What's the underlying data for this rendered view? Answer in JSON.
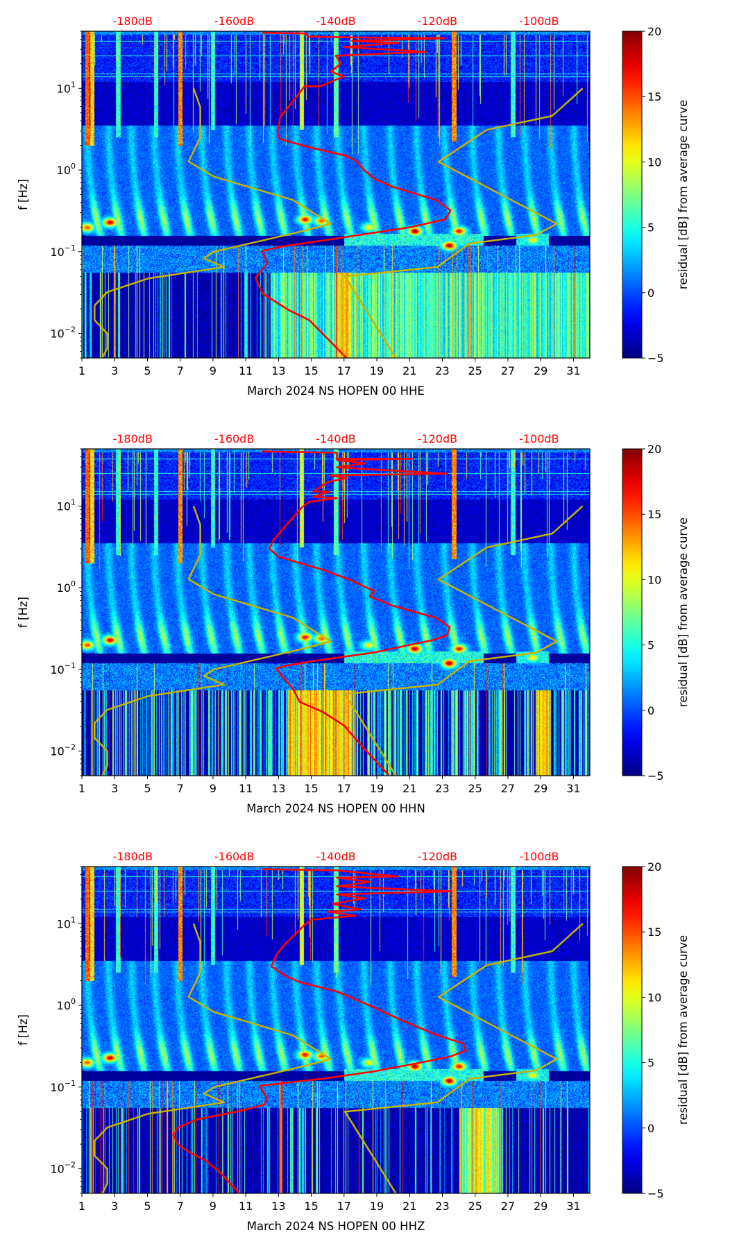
{
  "figure": {
    "y_label": "f [Hz]",
    "colorbar_label": "residual [dB] from average curve"
  },
  "reference_curves": {
    "color": "#c8b400",
    "low_noise_model": [
      [
        -168,
        10
      ],
      [
        -166.7,
        5.9
      ],
      [
        -166.7,
        2.5
      ],
      [
        -169,
        1.27
      ],
      [
        -164,
        0.83
      ],
      [
        -148.5,
        0.43
      ],
      [
        -141,
        0.22
      ],
      [
        -148,
        0.17
      ],
      [
        -164,
        0.1
      ],
      [
        -166,
        0.083
      ],
      [
        -162,
        0.065
      ],
      [
        -177,
        0.047
      ],
      [
        -185,
        0.032
      ],
      [
        -187.5,
        0.022
      ],
      [
        -187.5,
        0.0145
      ],
      [
        -185,
        0.01
      ],
      [
        -185,
        0.0066
      ],
      [
        -186,
        0.005
      ]
    ],
    "high_noise_model": [
      [
        -91.4,
        10
      ],
      [
        -97.4,
        4.6
      ],
      [
        -110.3,
        3.1
      ],
      [
        -119.8,
        1.26
      ],
      [
        -96.5,
        0.22
      ],
      [
        -100.6,
        0.16
      ],
      [
        -113.7,
        0.126
      ],
      [
        -120,
        0.065
      ],
      [
        -138.2,
        0.05
      ],
      [
        -128.2,
        0.005
      ]
    ]
  },
  "chart_data": [
    {
      "type": "heatmap",
      "xlabel": "March 2024 NS HOPEN 00 HHE",
      "xlim": [
        1,
        32
      ],
      "ylim": [
        0.005,
        50
      ],
      "yscale": "log",
      "x_ticks": [
        1,
        3,
        5,
        7,
        9,
        11,
        13,
        15,
        17,
        19,
        21,
        23,
        25,
        27,
        29,
        31
      ],
      "x_tick_labels": [
        "1",
        "3",
        "5",
        "7",
        "9",
        "11",
        "13",
        "15",
        "17",
        "19",
        "21",
        "23",
        "25",
        "27",
        "29",
        "31"
      ],
      "y_ticks": [
        {
          "value": 0.01,
          "base": "10",
          "exp": "−2"
        },
        {
          "value": 0.1,
          "base": "10",
          "exp": "−1"
        },
        {
          "value": 1,
          "base": "10",
          "exp": "0"
        },
        {
          "value": 10,
          "base": "10",
          "exp": "1"
        }
      ],
      "top_axis": {
        "labels": [
          "-180dB",
          "-160dB",
          "-140dB",
          "-120dB",
          "-100dB"
        ],
        "dB": [
          -180,
          -160,
          -140,
          -120,
          -100
        ],
        "day": [
          4.1,
          10.3,
          16.5,
          22.7,
          28.9
        ],
        "color": "#ff0000"
      },
      "colorbar": {
        "min": -5,
        "max": 20,
        "ticks": [
          -5,
          0,
          5,
          10,
          15,
          20
        ],
        "tick_labels": [
          "−5",
          "0",
          "5",
          "10",
          "15",
          "20"
        ],
        "colormap": "jet"
      },
      "average_curve": {
        "color": "#ff0000",
        "points": [
          [
            -154.5,
            48
          ],
          [
            -145.8,
            47
          ],
          [
            -145.5,
            43
          ],
          [
            -136.8,
            42
          ],
          [
            -118.7,
            41
          ],
          [
            -136.8,
            38
          ],
          [
            -127.7,
            36
          ],
          [
            -138.4,
            32
          ],
          [
            -122.3,
            28
          ],
          [
            -140,
            25
          ],
          [
            -139,
            20
          ],
          [
            -141,
            16
          ],
          [
            -138.4,
            14
          ],
          [
            -141,
            12
          ],
          [
            -143.2,
            10.5
          ],
          [
            -146.1,
            10.7
          ],
          [
            -148.1,
            7.4
          ],
          [
            -151,
            4.4
          ],
          [
            -151.5,
            2.8
          ],
          [
            -151,
            2.4
          ],
          [
            -145.3,
            1.9
          ],
          [
            -138.1,
            1.5
          ],
          [
            -136.1,
            1.3
          ],
          [
            -134.8,
            1.05
          ],
          [
            -132.4,
            0.78
          ],
          [
            -128.7,
            0.62
          ],
          [
            -120.3,
            0.43
          ],
          [
            -117.4,
            0.32
          ],
          [
            -118.4,
            0.25
          ],
          [
            -125.2,
            0.2
          ],
          [
            -141.6,
            0.14
          ],
          [
            -151,
            0.115
          ],
          [
            -154.5,
            0.102
          ],
          [
            -153.5,
            0.071
          ],
          [
            -155.8,
            0.048
          ],
          [
            -154.5,
            0.031
          ],
          [
            -149.4,
            0.0195
          ],
          [
            -145.2,
            0.0145
          ],
          [
            -137.9,
            0.005
          ]
        ]
      }
    },
    {
      "type": "heatmap",
      "xlabel": "March 2024 NS HOPEN 00 HHN",
      "xlim": [
        1,
        32
      ],
      "ylim": [
        0.005,
        50
      ],
      "yscale": "log",
      "x_ticks": [
        1,
        3,
        5,
        7,
        9,
        11,
        13,
        15,
        17,
        19,
        21,
        23,
        25,
        27,
        29,
        31
      ],
      "x_tick_labels": [
        "1",
        "3",
        "5",
        "7",
        "9",
        "11",
        "13",
        "15",
        "17",
        "19",
        "21",
        "23",
        "25",
        "27",
        "29",
        "31"
      ],
      "y_ticks": [
        {
          "value": 0.01,
          "base": "10",
          "exp": "−2"
        },
        {
          "value": 0.1,
          "base": "10",
          "exp": "−1"
        },
        {
          "value": 1,
          "base": "10",
          "exp": "0"
        },
        {
          "value": 10,
          "base": "10",
          "exp": "1"
        }
      ],
      "top_axis": {
        "labels": [
          "-180dB",
          "-160dB",
          "-140dB",
          "-120dB",
          "-100dB"
        ],
        "dB": [
          -180,
          -160,
          -140,
          -120,
          -100
        ],
        "day": [
          4.1,
          10.3,
          16.5,
          22.7,
          28.9
        ],
        "color": "#ff0000"
      },
      "colorbar": {
        "min": -5,
        "max": 20,
        "ticks": [
          -5,
          0,
          5,
          10,
          15,
          20
        ],
        "tick_labels": [
          "−5",
          "0",
          "5",
          "10",
          "15",
          "20"
        ],
        "colormap": "jet"
      },
      "average_curve": {
        "color": "#ff0000",
        "points": [
          [
            -154.5,
            46.6
          ],
          [
            -139.8,
            44.8
          ],
          [
            -139.8,
            37.8
          ],
          [
            -125,
            37.8
          ],
          [
            -139.8,
            36.6
          ],
          [
            -134.2,
            33.2
          ],
          [
            -139.8,
            29.7
          ],
          [
            -118.1,
            24.9
          ],
          [
            -141.2,
            23.7
          ],
          [
            -137.9,
            22
          ],
          [
            -141.6,
            19.6
          ],
          [
            -144.4,
            15.1
          ],
          [
            -141.2,
            14.9
          ],
          [
            -144.4,
            13
          ],
          [
            -139.8,
            12.5
          ],
          [
            -145.3,
            11.2
          ],
          [
            -146.7,
            9.6
          ],
          [
            -149.9,
            5.7
          ],
          [
            -152.2,
            3.9
          ],
          [
            -153.1,
            3.0
          ],
          [
            -151.3,
            2.4
          ],
          [
            -147.1,
            2.0
          ],
          [
            -142.5,
            1.65
          ],
          [
            -137.5,
            1.27
          ],
          [
            -135.2,
            1.09
          ],
          [
            -132.4,
            0.91
          ],
          [
            -133.3,
            0.78
          ],
          [
            -128.7,
            0.6
          ],
          [
            -120.4,
            0.43
          ],
          [
            -117.6,
            0.33
          ],
          [
            -118.1,
            0.26
          ],
          [
            -121.3,
            0.226
          ],
          [
            -132.4,
            0.161
          ],
          [
            -143.5,
            0.129
          ],
          [
            -149.9,
            0.111
          ],
          [
            -151.7,
            0.103
          ],
          [
            -150.8,
            0.085
          ],
          [
            -148.5,
            0.059
          ],
          [
            -147.1,
            0.04
          ],
          [
            -142.5,
            0.03
          ],
          [
            -138.4,
            0.0206
          ],
          [
            -136.1,
            0.0141
          ],
          [
            -133.3,
            0.009
          ],
          [
            -129.6,
            0.0051
          ]
        ]
      }
    },
    {
      "type": "heatmap",
      "xlabel": "March 2024 NS HOPEN 00 HHZ",
      "xlim": [
        1,
        32
      ],
      "ylim": [
        0.005,
        50
      ],
      "yscale": "log",
      "x_ticks": [
        1,
        3,
        5,
        7,
        9,
        11,
        13,
        15,
        17,
        19,
        21,
        23,
        25,
        27,
        29,
        31
      ],
      "x_tick_labels": [
        "1",
        "3",
        "5",
        "7",
        "9",
        "11",
        "13",
        "15",
        "17",
        "19",
        "21",
        "23",
        "25",
        "27",
        "29",
        "31"
      ],
      "y_ticks": [
        {
          "value": 0.01,
          "base": "10",
          "exp": "−2"
        },
        {
          "value": 0.1,
          "base": "10",
          "exp": "−1"
        },
        {
          "value": 1,
          "base": "10",
          "exp": "0"
        },
        {
          "value": 10,
          "base": "10",
          "exp": "1"
        }
      ],
      "top_axis": {
        "labels": [
          "-180dB",
          "-160dB",
          "-140dB",
          "-120dB",
          "-100dB"
        ],
        "dB": [
          -180,
          -160,
          -140,
          -120,
          -100
        ],
        "day": [
          4.1,
          10.3,
          16.5,
          22.7,
          28.9
        ],
        "color": "#ff0000"
      },
      "colorbar": {
        "min": -5,
        "max": 20,
        "ticks": [
          -5,
          0,
          5,
          10,
          15,
          20
        ],
        "tick_labels": [
          "−5",
          "0",
          "5",
          "10",
          "15",
          "20"
        ],
        "colormap": "jet"
      },
      "average_curve": {
        "color": "#ff0000",
        "points": [
          [
            -154.5,
            46.6
          ],
          [
            -139.8,
            44.8
          ],
          [
            -127.8,
            37.8
          ],
          [
            -139.8,
            36.6
          ],
          [
            -133.3,
            32.4
          ],
          [
            -139.8,
            28.6
          ],
          [
            -117.2,
            24.9
          ],
          [
            -139.8,
            22.8
          ],
          [
            -134.2,
            20.4
          ],
          [
            -140.7,
            17.5
          ],
          [
            -135.2,
            14.9
          ],
          [
            -141.6,
            14
          ],
          [
            -136.1,
            12.5
          ],
          [
            -144.8,
            11.2
          ],
          [
            -146.2,
            9.6
          ],
          [
            -149.9,
            5.7
          ],
          [
            -151.7,
            4.2
          ],
          [
            -152.7,
            3.0
          ],
          [
            -149.9,
            2.3
          ],
          [
            -147.1,
            1.92
          ],
          [
            -139.8,
            1.48
          ],
          [
            -136.1,
            1.18
          ],
          [
            -132.4,
            0.94
          ],
          [
            -126.9,
            0.65
          ],
          [
            -120.4,
            0.44
          ],
          [
            -114.9,
            0.34
          ],
          [
            -114.4,
            0.28
          ],
          [
            -117.6,
            0.235
          ],
          [
            -123.2,
            0.2
          ],
          [
            -132.4,
            0.156
          ],
          [
            -141.6,
            0.129
          ],
          [
            -150.8,
            0.111
          ],
          [
            -155,
            0.103
          ],
          [
            -154.5,
            0.092
          ],
          [
            -153.6,
            0.073
          ],
          [
            -154.1,
            0.061
          ],
          [
            -158.2,
            0.052
          ],
          [
            -167.4,
            0.04
          ],
          [
            -171.1,
            0.032
          ],
          [
            -172,
            0.0257
          ],
          [
            -171.1,
            0.0198
          ],
          [
            -168.3,
            0.0152
          ],
          [
            -165.6,
            0.0126
          ],
          [
            -162.8,
            0.009
          ],
          [
            -159.1,
            0.0051
          ]
        ]
      }
    }
  ]
}
